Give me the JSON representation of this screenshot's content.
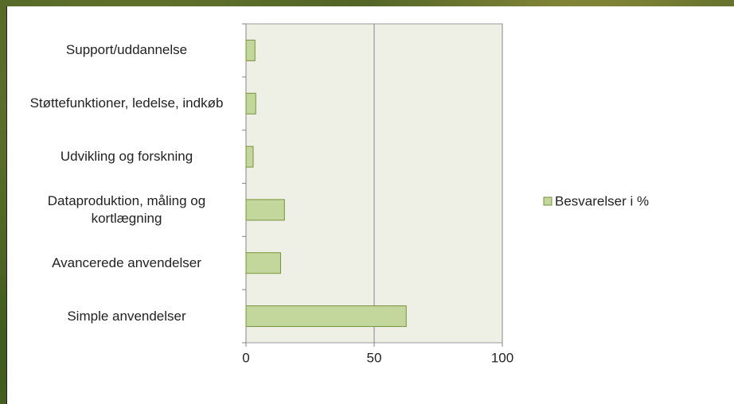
{
  "chart_data": {
    "type": "bar",
    "orientation": "horizontal",
    "categories": [
      "Support/uddannelse",
      "Støttefunktioner, ledelse, indkøb",
      "Udvikling og forskning",
      "Dataproduktion, måling og kortlægning",
      "Avancerede anvendelser",
      "Simple anvendelser"
    ],
    "series": [
      {
        "name": "Besvarelser i %",
        "color": "#c3d69b",
        "values": [
          3.5,
          3.8,
          2.8,
          15,
          13.5,
          62.5
        ]
      }
    ],
    "xlim": [
      0,
      100
    ],
    "xticks": [
      0,
      50,
      100
    ],
    "grid": true,
    "legend": "right"
  }
}
